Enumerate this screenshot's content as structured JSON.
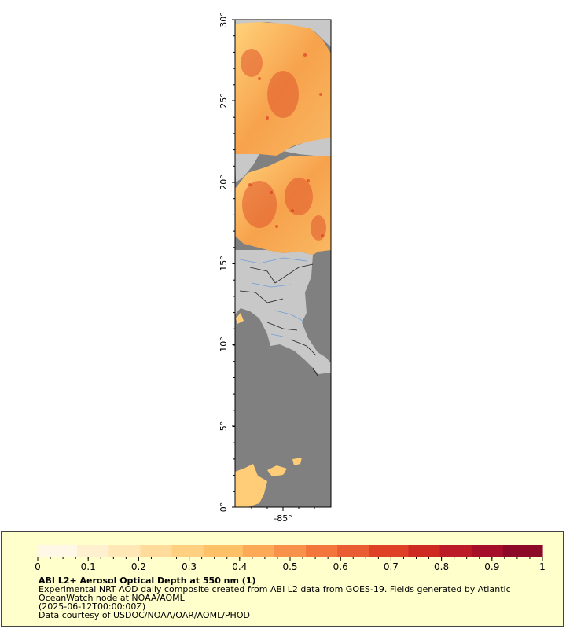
{
  "map": {
    "lat_labels": [
      "0°",
      "5°",
      "10°",
      "15°",
      "20°",
      "25°",
      "30°"
    ],
    "lon_labels": [
      "-85°"
    ],
    "colors": {
      "ocean_nodata": "#808080",
      "land": "#c8c8c8",
      "aod_low": "#ffd27a",
      "aod_mid": "#f59a45",
      "aod_high": "#d7301f",
      "borders": "#222222",
      "rivers": "#6f9fd8"
    }
  },
  "legend": {
    "ticks": [
      "0",
      "0.1",
      "0.2",
      "0.3",
      "0.4",
      "0.5",
      "0.6",
      "0.7",
      "0.8",
      "0.9",
      "1"
    ],
    "title": "ABI L2+ Aerosol Optical Depth at 550 nm (1)",
    "line1": "Experimental NRT AOD daily composite created from ABI L2 data from GOES-19. Fields generated by Atlantic OceanWatch node at NOAA/AOML",
    "line2": "(2025-06-12T00:00:00Z)",
    "line3": "Data courtesy of USDOC/NOAA/OAR/AOML/PHOD",
    "colors": [
      "#fff8e6",
      "#fff0cf",
      "#ffe7b6",
      "#ffdc9c",
      "#ffd07f",
      "#ffc168",
      "#fcaa58",
      "#f8914a",
      "#f3773c",
      "#ea5c31",
      "#df4126",
      "#cf2a22",
      "#bb1a26",
      "#a60f2a",
      "#8c0a28"
    ]
  }
}
